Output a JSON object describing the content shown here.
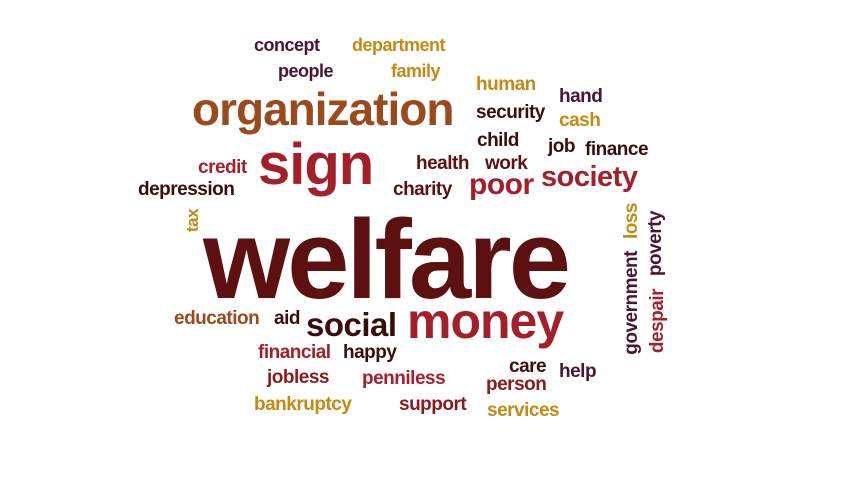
{
  "palette": {
    "dark": "#3a0d0d",
    "maroon": "#5c1010",
    "red": "#8b1a1a",
    "crimson": "#a31f2a",
    "brown": "#9a4a1c",
    "gold": "#c48a12",
    "plum": "#4a1530"
  },
  "words": {
    "concept": "concept",
    "department": "department",
    "people": "people",
    "family": "family",
    "human": "human",
    "hand": "hand",
    "organization": "organization",
    "security": "security",
    "cash": "cash",
    "child": "child",
    "job": "job",
    "finance": "finance",
    "credit": "credit",
    "sign": "sign",
    "health": "health",
    "work": "work",
    "society": "society",
    "depression": "depression",
    "charity": "charity",
    "poor": "poor",
    "tax": "tax",
    "loss": "loss",
    "poverty": "poverty",
    "welfare": "welfare",
    "government": "government",
    "despair": "despair",
    "education": "education",
    "aid": "aid",
    "social": "social",
    "money": "money",
    "financial": "financial",
    "happy": "happy",
    "care": "care",
    "help": "help",
    "jobless": "jobless",
    "penniless": "penniless",
    "person": "person",
    "bankruptcy": "bankruptcy",
    "support": "support",
    "services": "services"
  }
}
